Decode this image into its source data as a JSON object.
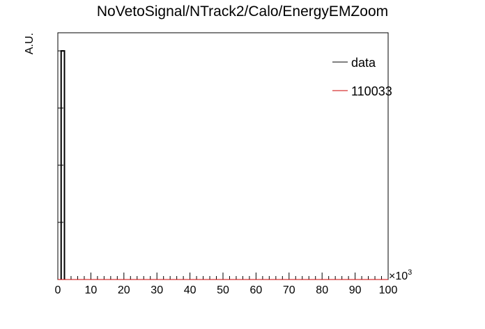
{
  "chart_data": {
    "type": "line",
    "title": "NoVetoSignal/NTrack2/Calo/EnergyEMZoom",
    "xlabel": "",
    "ylabel": "A.U.",
    "x_multiplier": {
      "base": "×10",
      "exponent": "3"
    },
    "xlim": [
      0,
      100
    ],
    "x_ticks": [
      0,
      10,
      20,
      30,
      40,
      50,
      60,
      70,
      80,
      90,
      100
    ],
    "x_tick_labels": [
      "0",
      "10",
      "20",
      "30",
      "40",
      "50",
      "60",
      "70",
      "80",
      "90",
      "100"
    ],
    "ylim": [
      0,
      1
    ],
    "series": [
      {
        "name": "data",
        "color": "#000000",
        "bin_edges": [
          1.0,
          2.0
        ],
        "values": [
          1.0
        ]
      },
      {
        "name": "110033",
        "color": "#cc0000",
        "bin_edges": [
          0,
          100
        ],
        "values": [
          0
        ]
      }
    ],
    "legend": {
      "position": "top-right",
      "entries": [
        {
          "label": "data",
          "color": "#000000"
        },
        {
          "label": "110033",
          "color": "#cc0000"
        }
      ]
    },
    "grid": false
  }
}
